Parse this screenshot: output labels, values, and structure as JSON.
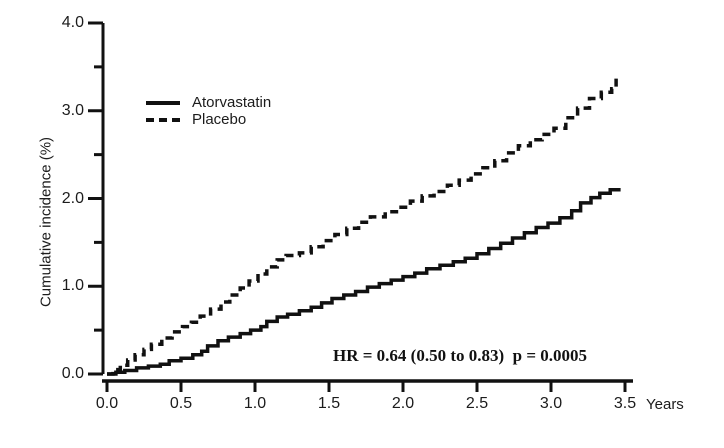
{
  "figure": {
    "background": "#ffffff",
    "line_color": "#111111",
    "text_color": "#1c1c1c"
  },
  "legend": {
    "items": [
      {
        "label": "Atorvastatin",
        "style": "solid"
      },
      {
        "label": "Placebo",
        "style": "dashed"
      }
    ]
  },
  "annotation": {
    "text": "HR = 0.64 (0.50 to 0.83)  p = 0.0005"
  },
  "axis": {
    "ylabel": "Cumulative incidence (%)",
    "x_unit_label": "Years"
  },
  "chart_data": {
    "type": "line",
    "title": "",
    "xlabel": "Years",
    "ylabel": "Cumulative incidence (%)",
    "xlim": [
      0,
      3.5
    ],
    "ylim": [
      0,
      4.0
    ],
    "grid": false,
    "legend_position": "upper-left-inside",
    "annotation": "HR = 0.64 (0.50 to 0.83) p = 0.0005",
    "x_ticks": [
      {
        "value": 0.0,
        "label": "0.0"
      },
      {
        "value": 0.5,
        "label": "0.5"
      },
      {
        "value": 1.0,
        "label": "1.0"
      },
      {
        "value": 1.5,
        "label": "1.5"
      },
      {
        "value": 2.0,
        "label": "2.0"
      },
      {
        "value": 2.5,
        "label": "2.5"
      },
      {
        "value": 3.0,
        "label": "3.0"
      },
      {
        "value": 3.5,
        "label": "3.5"
      }
    ],
    "y_major_ticks": [
      {
        "value": 0.0,
        "label": "0.0"
      },
      {
        "value": 1.0,
        "label": "1.0"
      },
      {
        "value": 2.0,
        "label": "2.0"
      },
      {
        "value": 3.0,
        "label": "3.0"
      },
      {
        "value": 4.0,
        "label": "4.0"
      }
    ],
    "y_minor_ticks": [
      0.5,
      1.5,
      2.5,
      3.5
    ],
    "series": [
      {
        "name": "Atorvastatin",
        "style": "solid",
        "step": true,
        "points": [
          [
            0.0,
            0.0
          ],
          [
            0.06,
            0.02
          ],
          [
            0.12,
            0.04
          ],
          [
            0.2,
            0.07
          ],
          [
            0.28,
            0.09
          ],
          [
            0.36,
            0.11
          ],
          [
            0.42,
            0.15
          ],
          [
            0.5,
            0.18
          ],
          [
            0.58,
            0.22
          ],
          [
            0.64,
            0.26
          ],
          [
            0.68,
            0.32
          ],
          [
            0.75,
            0.38
          ],
          [
            0.82,
            0.42
          ],
          [
            0.9,
            0.46
          ],
          [
            0.97,
            0.5
          ],
          [
            1.04,
            0.54
          ],
          [
            1.08,
            0.6
          ],
          [
            1.15,
            0.65
          ],
          [
            1.22,
            0.68
          ],
          [
            1.3,
            0.72
          ],
          [
            1.38,
            0.76
          ],
          [
            1.45,
            0.81
          ],
          [
            1.52,
            0.86
          ],
          [
            1.6,
            0.9
          ],
          [
            1.68,
            0.94
          ],
          [
            1.76,
            0.99
          ],
          [
            1.84,
            1.03
          ],
          [
            1.92,
            1.07
          ],
          [
            2.0,
            1.11
          ],
          [
            2.08,
            1.15
          ],
          [
            2.16,
            1.2
          ],
          [
            2.25,
            1.24
          ],
          [
            2.34,
            1.28
          ],
          [
            2.42,
            1.32
          ],
          [
            2.5,
            1.37
          ],
          [
            2.58,
            1.43
          ],
          [
            2.66,
            1.49
          ],
          [
            2.74,
            1.55
          ],
          [
            2.82,
            1.61
          ],
          [
            2.9,
            1.67
          ],
          [
            2.98,
            1.72
          ],
          [
            3.06,
            1.78
          ],
          [
            3.14,
            1.86
          ],
          [
            3.2,
            1.95
          ],
          [
            3.27,
            2.01
          ],
          [
            3.33,
            2.06
          ],
          [
            3.4,
            2.1
          ],
          [
            3.47,
            2.1
          ]
        ]
      },
      {
        "name": "Placebo",
        "style": "dashed",
        "step": true,
        "points": [
          [
            0.0,
            0.0
          ],
          [
            0.04,
            0.05
          ],
          [
            0.09,
            0.1
          ],
          [
            0.14,
            0.16
          ],
          [
            0.19,
            0.22
          ],
          [
            0.25,
            0.28
          ],
          [
            0.3,
            0.34
          ],
          [
            0.37,
            0.41
          ],
          [
            0.44,
            0.48
          ],
          [
            0.51,
            0.54
          ],
          [
            0.57,
            0.59
          ],
          [
            0.63,
            0.66
          ],
          [
            0.7,
            0.74
          ],
          [
            0.77,
            0.82
          ],
          [
            0.83,
            0.9
          ],
          [
            0.9,
            0.98
          ],
          [
            0.96,
            1.06
          ],
          [
            1.02,
            1.14
          ],
          [
            1.08,
            1.22
          ],
          [
            1.15,
            1.3
          ],
          [
            1.21,
            1.35
          ],
          [
            1.3,
            1.38
          ],
          [
            1.38,
            1.45
          ],
          [
            1.46,
            1.52
          ],
          [
            1.54,
            1.59
          ],
          [
            1.62,
            1.66
          ],
          [
            1.7,
            1.73
          ],
          [
            1.78,
            1.79
          ],
          [
            1.88,
            1.85
          ],
          [
            1.97,
            1.9
          ],
          [
            2.05,
            1.97
          ],
          [
            2.13,
            2.03
          ],
          [
            2.21,
            2.08
          ],
          [
            2.3,
            2.15
          ],
          [
            2.38,
            2.21
          ],
          [
            2.46,
            2.28
          ],
          [
            2.54,
            2.35
          ],
          [
            2.62,
            2.43
          ],
          [
            2.7,
            2.52
          ],
          [
            2.78,
            2.6
          ],
          [
            2.86,
            2.67
          ],
          [
            2.94,
            2.73
          ],
          [
            3.02,
            2.8
          ],
          [
            3.1,
            2.92
          ],
          [
            3.18,
            3.03
          ],
          [
            3.26,
            3.14
          ],
          [
            3.34,
            3.21
          ],
          [
            3.41,
            3.25
          ],
          [
            3.44,
            3.38
          ]
        ]
      }
    ]
  }
}
